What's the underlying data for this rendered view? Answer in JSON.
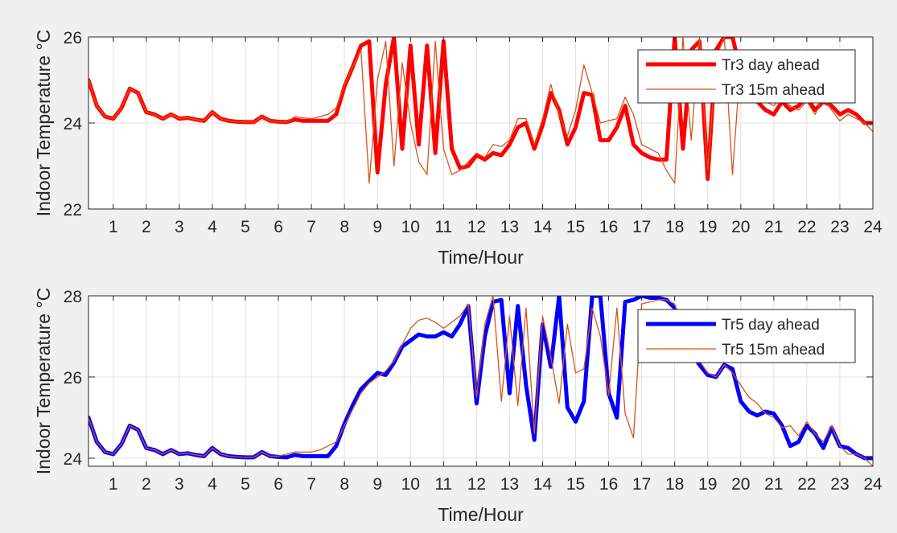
{
  "chart_data": [
    {
      "type": "line",
      "ylabel": "Indoor Temperature °C",
      "xlabel": "Time/Hour",
      "xlim": [
        0.25,
        24
      ],
      "ylim": [
        22,
        26
      ],
      "xticks": [
        1,
        2,
        3,
        4,
        5,
        6,
        7,
        8,
        9,
        10,
        11,
        12,
        13,
        14,
        15,
        16,
        17,
        18,
        19,
        20,
        21,
        22,
        23,
        24
      ],
      "yticks": [
        22,
        24,
        26
      ],
      "grid": true,
      "legend_position": "top-right",
      "series": [
        {
          "name": "Tr3 day ahead",
          "color": "#ff0000",
          "x": [
            0.25,
            0.5,
            0.75,
            1,
            1.25,
            1.5,
            1.75,
            2,
            2.25,
            2.5,
            2.75,
            3,
            3.25,
            3.5,
            3.75,
            4,
            4.25,
            4.5,
            4.75,
            5,
            5.25,
            5.5,
            5.75,
            6,
            6.25,
            6.5,
            6.75,
            7,
            7.25,
            7.5,
            7.75,
            8,
            8.25,
            8.5,
            8.75,
            9,
            9.25,
            9.5,
            9.75,
            10,
            10.25,
            10.5,
            10.75,
            11,
            11.25,
            11.5,
            11.75,
            12,
            12.25,
            12.5,
            12.75,
            13,
            13.25,
            13.5,
            13.75,
            14,
            14.25,
            14.5,
            14.75,
            15,
            15.25,
            15.5,
            15.75,
            16,
            16.25,
            16.5,
            16.75,
            17,
            17.25,
            17.5,
            17.75,
            18,
            18.25,
            18.5,
            18.75,
            19,
            19.25,
            19.5,
            19.75,
            20,
            20.25,
            20.5,
            20.75,
            21,
            21.25,
            21.5,
            21.75,
            22,
            22.25,
            22.5,
            22.75,
            23,
            23.25,
            23.5,
            23.75,
            24
          ],
          "y": [
            25.0,
            24.4,
            24.15,
            24.1,
            24.35,
            24.8,
            24.7,
            24.25,
            24.2,
            24.1,
            24.2,
            24.1,
            24.12,
            24.08,
            24.05,
            24.25,
            24.1,
            24.05,
            24.03,
            24.02,
            24.02,
            24.15,
            24.05,
            24.03,
            24.02,
            24.08,
            24.05,
            24.05,
            24.05,
            24.05,
            24.2,
            24.85,
            25.3,
            25.8,
            25.9,
            22.85,
            24.9,
            26.0,
            23.4,
            25.8,
            23.5,
            25.8,
            23.3,
            25.9,
            23.4,
            22.95,
            23.0,
            23.25,
            23.15,
            23.3,
            23.25,
            23.5,
            23.9,
            24.0,
            23.4,
            23.95,
            24.7,
            24.3,
            23.5,
            23.9,
            24.7,
            24.65,
            23.6,
            23.6,
            23.9,
            24.4,
            23.5,
            23.3,
            23.2,
            23.15,
            23.15,
            26.0,
            23.4,
            25.7,
            25.9,
            22.7,
            25.7,
            26.0,
            26.0,
            25.2,
            24.9,
            24.5,
            24.3,
            24.2,
            24.5,
            24.3,
            24.4,
            24.6,
            24.3,
            24.5,
            24.4,
            24.2,
            24.3,
            24.2,
            24.0,
            24.0
          ],
          "line_width": 5
        },
        {
          "name": "Tr3 15m ahead",
          "color": "#d95319",
          "x": [
            0.25,
            0.5,
            0.75,
            1,
            1.25,
            1.5,
            1.75,
            2,
            2.25,
            2.5,
            2.75,
            3,
            3.25,
            3.5,
            3.75,
            4,
            4.25,
            4.5,
            4.75,
            5,
            5.25,
            5.5,
            5.75,
            6,
            6.25,
            6.5,
            6.75,
            7,
            7.25,
            7.5,
            7.75,
            8,
            8.25,
            8.5,
            8.75,
            9,
            9.25,
            9.5,
            9.75,
            10,
            10.25,
            10.5,
            10.75,
            11,
            11.25,
            11.5,
            11.75,
            12,
            12.25,
            12.5,
            12.75,
            13,
            13.25,
            13.5,
            13.75,
            14,
            14.25,
            14.5,
            14.75,
            15,
            15.25,
            15.5,
            15.75,
            16,
            16.25,
            16.5,
            16.75,
            17,
            17.25,
            17.5,
            17.75,
            18,
            18.25,
            18.5,
            18.75,
            19,
            19.25,
            19.5,
            19.75,
            20,
            20.25,
            20.5,
            20.75,
            21,
            21.25,
            21.5,
            21.75,
            22,
            22.25,
            22.5,
            22.75,
            23,
            23.25,
            23.5,
            23.75,
            24
          ],
          "y": [
            25.0,
            24.4,
            24.15,
            24.1,
            24.35,
            24.8,
            24.7,
            24.25,
            24.2,
            24.1,
            24.2,
            24.1,
            24.12,
            24.08,
            24.05,
            24.25,
            24.1,
            24.05,
            24.03,
            24.02,
            24.02,
            24.15,
            24.05,
            24.03,
            24.02,
            24.15,
            24.12,
            24.1,
            24.15,
            24.2,
            24.35,
            24.9,
            25.3,
            25.7,
            22.6,
            25.0,
            25.9,
            23.0,
            25.4,
            24.0,
            23.1,
            22.8,
            25.9,
            23.4,
            22.8,
            22.9,
            23.1,
            23.3,
            23.2,
            23.5,
            23.45,
            23.6,
            24.1,
            24.1,
            23.5,
            24.1,
            24.9,
            24.2,
            23.7,
            24.3,
            25.35,
            24.7,
            24.0,
            24.05,
            24.1,
            24.6,
            24.2,
            23.5,
            23.4,
            23.3,
            22.9,
            22.6,
            26.0,
            23.6,
            26.0,
            22.9,
            25.5,
            26.0,
            22.8,
            25.5,
            25.3,
            24.8,
            24.5,
            24.4,
            24.6,
            24.4,
            24.3,
            24.5,
            24.2,
            24.6,
            24.3,
            24.05,
            24.2,
            24.1,
            24.0,
            23.8
          ],
          "line_width": 1.3
        }
      ]
    },
    {
      "type": "line",
      "ylabel": "Indoor Temperature °C",
      "xlabel": "Time/Hour",
      "xlim": [
        0.25,
        24
      ],
      "ylim": [
        23.8,
        28
      ],
      "xticks": [
        1,
        2,
        3,
        4,
        5,
        6,
        7,
        8,
        9,
        10,
        11,
        12,
        13,
        14,
        15,
        16,
        17,
        18,
        19,
        20,
        21,
        22,
        23,
        24
      ],
      "yticks": [
        24,
        26,
        28
      ],
      "grid": true,
      "legend_position": "top-right",
      "series": [
        {
          "name": "Tr5 day ahead",
          "color": "#0000ff",
          "x": [
            0.25,
            0.5,
            0.75,
            1,
            1.25,
            1.5,
            1.75,
            2,
            2.25,
            2.5,
            2.75,
            3,
            3.25,
            3.5,
            3.75,
            4,
            4.25,
            4.5,
            4.75,
            5,
            5.25,
            5.5,
            5.75,
            6,
            6.25,
            6.5,
            6.75,
            7,
            7.25,
            7.5,
            7.75,
            8,
            8.25,
            8.5,
            8.75,
            9,
            9.25,
            9.5,
            9.75,
            10,
            10.25,
            10.5,
            10.75,
            11,
            11.25,
            11.5,
            11.75,
            12,
            12.25,
            12.5,
            12.75,
            13,
            13.25,
            13.5,
            13.75,
            14,
            14.25,
            14.5,
            14.75,
            15,
            15.25,
            15.5,
            15.75,
            16,
            16.25,
            16.5,
            16.75,
            17,
            17.25,
            17.5,
            17.75,
            18,
            18.25,
            18.5,
            18.75,
            19,
            19.25,
            19.5,
            19.75,
            20,
            20.25,
            20.5,
            20.75,
            21,
            21.25,
            21.5,
            21.75,
            22,
            22.25,
            22.5,
            22.75,
            23,
            23.25,
            23.5,
            23.75,
            24
          ],
          "y": [
            25.0,
            24.4,
            24.15,
            24.1,
            24.35,
            24.8,
            24.7,
            24.25,
            24.2,
            24.1,
            24.2,
            24.1,
            24.12,
            24.08,
            24.05,
            24.25,
            24.1,
            24.05,
            24.03,
            24.02,
            24.02,
            24.15,
            24.05,
            24.03,
            24.02,
            24.08,
            24.05,
            24.05,
            24.05,
            24.05,
            24.3,
            24.85,
            25.3,
            25.7,
            25.9,
            26.1,
            26.05,
            26.35,
            26.75,
            26.9,
            27.05,
            27.0,
            27.0,
            27.1,
            27.0,
            27.3,
            27.75,
            25.35,
            27.0,
            27.85,
            27.9,
            25.6,
            27.75,
            25.8,
            24.45,
            27.3,
            26.25,
            28.0,
            25.25,
            24.9,
            25.4,
            28.0,
            28.0,
            25.6,
            25.0,
            27.85,
            27.9,
            28.0,
            27.95,
            27.95,
            27.9,
            27.7,
            26.95,
            26.6,
            26.3,
            26.05,
            26.0,
            26.3,
            26.2,
            25.4,
            25.15,
            25.05,
            25.15,
            25.1,
            24.8,
            24.3,
            24.4,
            24.8,
            24.6,
            24.25,
            24.75,
            24.3,
            24.25,
            24.1,
            24.0,
            24.0
          ],
          "line_width": 5
        },
        {
          "name": "Tr5 15m ahead",
          "color": "#d95319",
          "x": [
            0.25,
            0.5,
            0.75,
            1,
            1.25,
            1.5,
            1.75,
            2,
            2.25,
            2.5,
            2.75,
            3,
            3.25,
            3.5,
            3.75,
            4,
            4.25,
            4.5,
            4.75,
            5,
            5.25,
            5.5,
            5.75,
            6,
            6.25,
            6.5,
            6.75,
            7,
            7.25,
            7.5,
            7.75,
            8,
            8.25,
            8.5,
            8.75,
            9,
            9.25,
            9.5,
            9.75,
            10,
            10.25,
            10.5,
            10.75,
            11,
            11.25,
            11.5,
            11.75,
            12,
            12.25,
            12.5,
            12.75,
            13,
            13.25,
            13.5,
            13.75,
            14,
            14.25,
            14.5,
            14.75,
            15,
            15.25,
            15.5,
            15.75,
            16,
            16.25,
            16.5,
            16.75,
            17,
            17.25,
            17.5,
            17.75,
            18,
            18.25,
            18.5,
            18.75,
            19,
            19.25,
            19.5,
            19.75,
            20,
            20.25,
            20.5,
            20.75,
            21,
            21.25,
            21.5,
            21.75,
            22,
            22.25,
            22.5,
            22.75,
            23,
            23.25,
            23.5,
            23.75,
            24
          ],
          "y": [
            25.0,
            24.4,
            24.15,
            24.1,
            24.35,
            24.8,
            24.7,
            24.25,
            24.2,
            24.1,
            24.2,
            24.1,
            24.12,
            24.08,
            24.05,
            24.25,
            24.1,
            24.05,
            24.03,
            24.02,
            24.02,
            24.15,
            24.05,
            24.05,
            24.1,
            24.15,
            24.15,
            24.15,
            24.2,
            24.3,
            24.4,
            24.8,
            25.2,
            25.6,
            25.85,
            26.0,
            26.15,
            26.4,
            26.8,
            27.2,
            27.4,
            27.45,
            27.35,
            27.2,
            27.35,
            27.5,
            27.8,
            25.5,
            27.3,
            28.0,
            25.4,
            27.5,
            25.3,
            27.7,
            24.6,
            27.5,
            26.5,
            25.35,
            27.3,
            26.1,
            26.2,
            27.7,
            27.0,
            25.55,
            27.7,
            25.1,
            24.5,
            27.8,
            27.85,
            27.9,
            27.9,
            27.8,
            27.2,
            26.7,
            26.4,
            26.1,
            26.0,
            26.3,
            26.1,
            25.8,
            25.5,
            25.35,
            25.1,
            25.0,
            24.75,
            24.8,
            24.55,
            24.9,
            24.6,
            24.4,
            24.8,
            24.3,
            24.1,
            24.1,
            24.0,
            23.8
          ],
          "line_width": 1.3
        }
      ]
    }
  ]
}
